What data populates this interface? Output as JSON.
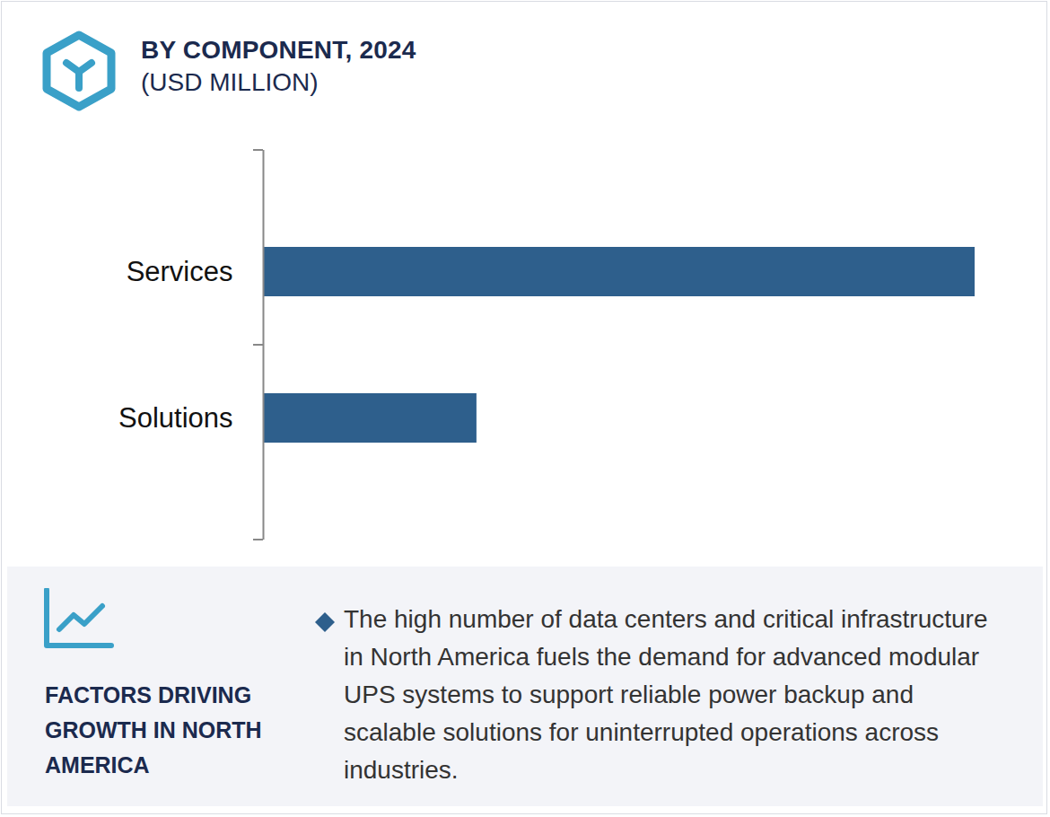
{
  "chart_data": {
    "type": "bar",
    "orientation": "horizontal",
    "title": "BY COMPONENT, 2024",
    "subtitle": "(USD MILLION)",
    "categories": [
      "Services",
      "Solutions"
    ],
    "values": [
      100,
      30
    ],
    "color": "#2e5f8c",
    "xlim": [
      0,
      100
    ],
    "tick_labels": "y",
    "data_labels": false,
    "grid": false,
    "footer": {
      "heading": "FACTORS DRIVING GROWTH IN NORTH AMERICA",
      "text": "The high number of data centers and critical infrastructure in North America fuels the demand for advanced modular UPS systems to support reliable power backup and scalable solutions for uninterrupted operations across industries."
    }
  }
}
